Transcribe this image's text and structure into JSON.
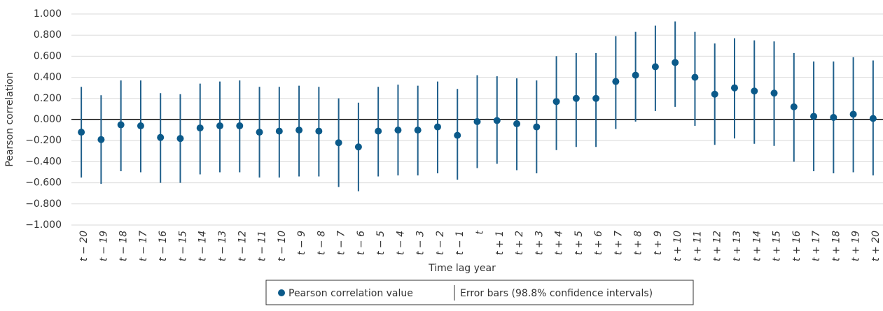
{
  "chart_data": {
    "type": "errorbar-dot",
    "y_label": "Pearson correlation",
    "x_label": "Time lag year",
    "categories": [
      "t − 20",
      "t − 19",
      "t − 18",
      "t − 17",
      "t − 16",
      "t − 15",
      "t − 14",
      "t − 13",
      "t − 12",
      "t − 11",
      "t − 10",
      "t − 9",
      "t − 8",
      "t − 7",
      "t − 6",
      "t − 5",
      "t − 4",
      "t − 3",
      "t − 2",
      "t − 1",
      "t",
      "t + 1",
      "t + 2",
      "t + 3",
      "t + 4",
      "t + 5",
      "t + 6",
      "t + 7",
      "t + 8",
      "t + 9",
      "t + 10",
      "t + 11",
      "t + 12",
      "t + 13",
      "t + 14",
      "t + 15",
      "t + 16",
      "t + 17",
      "t + 18",
      "t + 19",
      "t + 20"
    ],
    "series": [
      {
        "name": "Pearson correlation value",
        "color": "#0b5a8a",
        "values": [
          -0.12,
          -0.19,
          -0.05,
          -0.06,
          -0.17,
          -0.18,
          -0.08,
          -0.06,
          -0.06,
          -0.12,
          -0.11,
          -0.1,
          -0.11,
          -0.22,
          -0.26,
          -0.11,
          -0.1,
          -0.1,
          -0.07,
          -0.15,
          -0.02,
          -0.01,
          -0.04,
          -0.07,
          0.17,
          0.2,
          0.2,
          0.36,
          0.42,
          0.5,
          0.54,
          0.4,
          0.24,
          0.3,
          0.27,
          0.25,
          0.12,
          0.03,
          0.02,
          0.05,
          0.01
        ]
      }
    ],
    "error_bars": {
      "name": "Error bars (98.8% confidence intervals)",
      "color": "#1f5f8b",
      "lower": [
        -0.55,
        -0.61,
        -0.49,
        -0.5,
        -0.6,
        -0.6,
        -0.52,
        -0.5,
        -0.5,
        -0.55,
        -0.55,
        -0.54,
        -0.54,
        -0.64,
        -0.68,
        -0.54,
        -0.53,
        -0.53,
        -0.51,
        -0.57,
        -0.46,
        -0.42,
        -0.48,
        -0.51,
        -0.29,
        -0.26,
        -0.26,
        -0.09,
        -0.02,
        0.08,
        0.12,
        -0.06,
        -0.24,
        -0.18,
        -0.23,
        -0.25,
        -0.4,
        -0.49,
        -0.51,
        -0.5,
        -0.53
      ],
      "upper": [
        0.31,
        0.23,
        0.37,
        0.37,
        0.25,
        0.24,
        0.34,
        0.36,
        0.37,
        0.31,
        0.31,
        0.32,
        0.31,
        0.2,
        0.16,
        0.31,
        0.33,
        0.32,
        0.36,
        0.29,
        0.42,
        0.41,
        0.39,
        0.37,
        0.6,
        0.63,
        0.63,
        0.79,
        0.83,
        0.89,
        0.93,
        0.83,
        0.72,
        0.77,
        0.75,
        0.74,
        0.63,
        0.55,
        0.55,
        0.59,
        0.56
      ]
    },
    "ylim": [
      -1,
      1
    ],
    "yticks": [
      {
        "value": -1,
        "label": "−1.000"
      },
      {
        "value": -0.8,
        "label": "−0.800"
      },
      {
        "value": -0.6,
        "label": "−0.600"
      },
      {
        "value": -0.4,
        "label": "−0.400"
      },
      {
        "value": -0.2,
        "label": "−0.200"
      },
      {
        "value": 0,
        "label": "0.000"
      },
      {
        "value": 0.2,
        "label": "0.200"
      },
      {
        "value": 0.4,
        "label": "0.400"
      },
      {
        "value": 0.6,
        "label": "0.600"
      },
      {
        "value": 0.8,
        "label": "0.800"
      },
      {
        "value": 1,
        "label": "1.000"
      }
    ],
    "grid": true
  }
}
